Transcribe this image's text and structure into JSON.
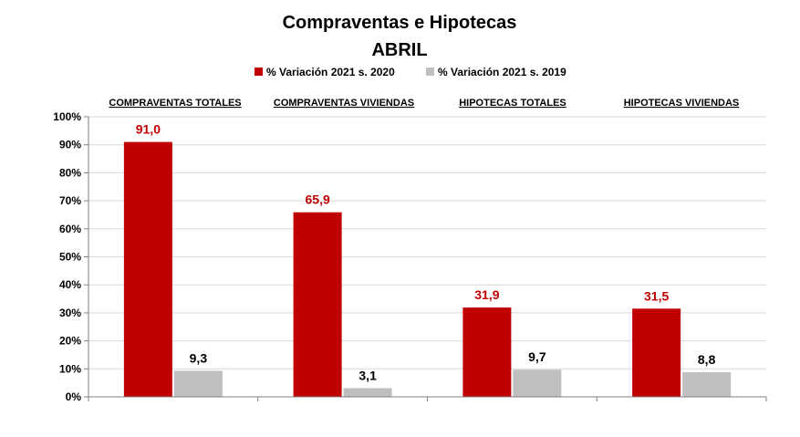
{
  "chart_data": {
    "type": "bar",
    "title": "Compraventas e Hipotecas",
    "subtitle": "ABRIL",
    "categories": [
      "COMPRAVENTAS TOTALES",
      "COMPRAVENTAS VIVIENDAS",
      "HIPOTECAS TOTALES",
      "HIPOTECAS VIVIENDAS"
    ],
    "series": [
      {
        "name": "% Variación 2021 s. 2020",
        "color": "#C00000",
        "values": [
          91.0,
          65.9,
          31.9,
          31.5
        ],
        "labels": [
          "91,0",
          "65,9",
          "31,9",
          "31,5"
        ]
      },
      {
        "name": "% Variación 2021 s. 2019",
        "color": "#BFBFBF",
        "values": [
          9.3,
          3.1,
          9.7,
          8.8
        ],
        "labels": [
          "9,3",
          "3,1",
          "9,7",
          "8,8"
        ]
      }
    ],
    "ylim": [
      0,
      100
    ],
    "yticks": [
      "0%",
      "10%",
      "20%",
      "30%",
      "40%",
      "50%",
      "60%",
      "70%",
      "80%",
      "90%",
      "100%"
    ],
    "ytick_values": [
      0,
      10,
      20,
      30,
      40,
      50,
      60,
      70,
      80,
      90,
      100
    ],
    "xlabel": "",
    "ylabel": "",
    "grid": true,
    "legend_position": "top-center",
    "label_colors": [
      "#C00000",
      "#000000"
    ]
  }
}
